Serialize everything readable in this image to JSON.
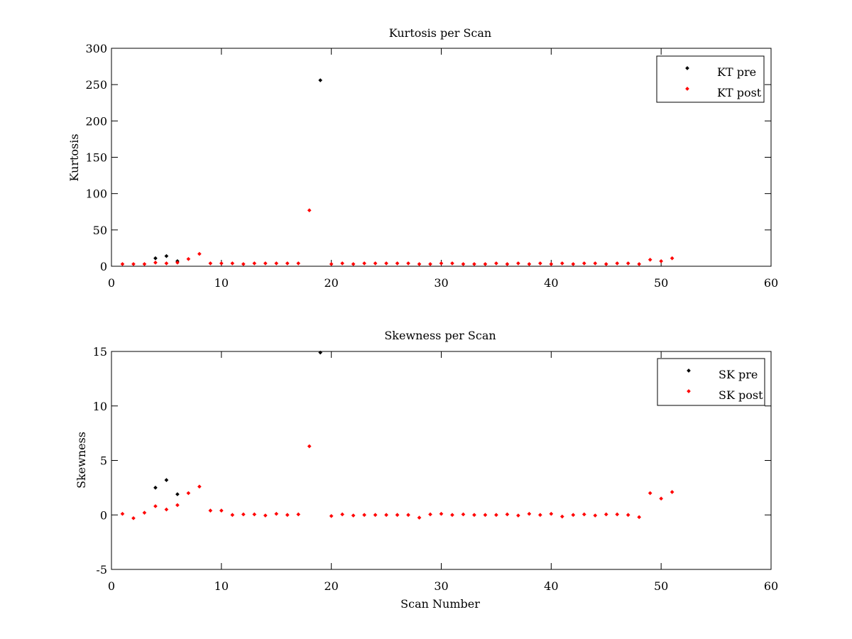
{
  "chart_data": [
    {
      "type": "scatter",
      "title": "Kurtosis per Scan",
      "xlabel": "",
      "ylabel": "Kurtosis",
      "xlim": [
        0,
        60
      ],
      "ylim": [
        0,
        300
      ],
      "xticks": [
        0,
        10,
        20,
        30,
        40,
        50,
        60
      ],
      "yticks": [
        0,
        50,
        100,
        150,
        200,
        250,
        300
      ],
      "xtick_labels": [
        "0",
        "10",
        "20",
        "30",
        "40",
        "50",
        "60"
      ],
      "ytick_labels": [
        "0",
        "50",
        "100",
        "150",
        "200",
        "250",
        "300"
      ],
      "legend_position": "top-right",
      "grid": false,
      "series": [
        {
          "name": "KT pre",
          "color": "#000000",
          "x": [
            4,
            5,
            6,
            19
          ],
          "y": [
            11,
            14,
            7,
            256
          ]
        },
        {
          "name": "KT post",
          "color": "#ff0000",
          "x": [
            1,
            2,
            3,
            4,
            5,
            6,
            7,
            8,
            9,
            10,
            11,
            12,
            13,
            14,
            15,
            16,
            17,
            18,
            20,
            21,
            22,
            23,
            24,
            25,
            26,
            27,
            28,
            29,
            30,
            31,
            32,
            33,
            34,
            35,
            36,
            37,
            38,
            39,
            40,
            41,
            42,
            43,
            44,
            45,
            46,
            47,
            48,
            49,
            50,
            51
          ],
          "y": [
            3,
            3,
            3,
            5,
            4,
            5,
            10,
            17,
            4,
            4,
            4,
            3,
            4,
            4,
            4,
            4,
            4,
            77,
            3,
            4,
            3,
            4,
            4,
            4,
            4,
            4,
            3,
            3,
            4,
            4,
            3,
            3,
            3,
            4,
            3,
            4,
            3,
            4,
            3,
            4,
            3,
            4,
            4,
            3,
            4,
            4,
            3,
            9,
            7,
            11
          ]
        }
      ]
    },
    {
      "type": "scatter",
      "title": "Skewness per Scan",
      "xlabel": "Scan Number",
      "ylabel": "Skewness",
      "xlim": [
        0,
        60
      ],
      "ylim": [
        -5,
        15
      ],
      "xticks": [
        0,
        10,
        20,
        30,
        40,
        50,
        60
      ],
      "yticks": [
        -5,
        0,
        5,
        10,
        15
      ],
      "xtick_labels": [
        "0",
        "10",
        "20",
        "30",
        "40",
        "50",
        "60"
      ],
      "ytick_labels": [
        "-5",
        "0",
        "5",
        "10",
        "15"
      ],
      "legend_position": "top-right",
      "grid": false,
      "series": [
        {
          "name": "SK pre",
          "color": "#000000",
          "x": [
            4,
            5,
            6,
            19
          ],
          "y": [
            2.5,
            3.2,
            1.9,
            14.9
          ]
        },
        {
          "name": "SK post",
          "color": "#ff0000",
          "x": [
            1,
            2,
            3,
            4,
            5,
            6,
            7,
            8,
            9,
            10,
            11,
            12,
            13,
            14,
            15,
            16,
            17,
            18,
            20,
            21,
            22,
            23,
            24,
            25,
            26,
            27,
            28,
            29,
            30,
            31,
            32,
            33,
            34,
            35,
            36,
            37,
            38,
            39,
            40,
            41,
            42,
            43,
            44,
            45,
            46,
            47,
            48,
            49,
            50,
            51
          ],
          "y": [
            0.1,
            -0.3,
            0.2,
            0.8,
            0.5,
            0.9,
            2.0,
            2.6,
            0.4,
            0.4,
            0.0,
            0.05,
            0.05,
            -0.05,
            0.1,
            0.0,
            0.05,
            6.3,
            -0.1,
            0.05,
            -0.05,
            0.0,
            0.0,
            0.0,
            0.0,
            0.0,
            -0.25,
            0.05,
            0.1,
            0.0,
            0.05,
            0.0,
            0.0,
            0.0,
            0.05,
            -0.05,
            0.1,
            0.0,
            0.1,
            -0.15,
            0.0,
            0.05,
            -0.05,
            0.05,
            0.05,
            0.0,
            -0.2,
            2.0,
            1.5,
            2.1
          ]
        }
      ]
    }
  ]
}
